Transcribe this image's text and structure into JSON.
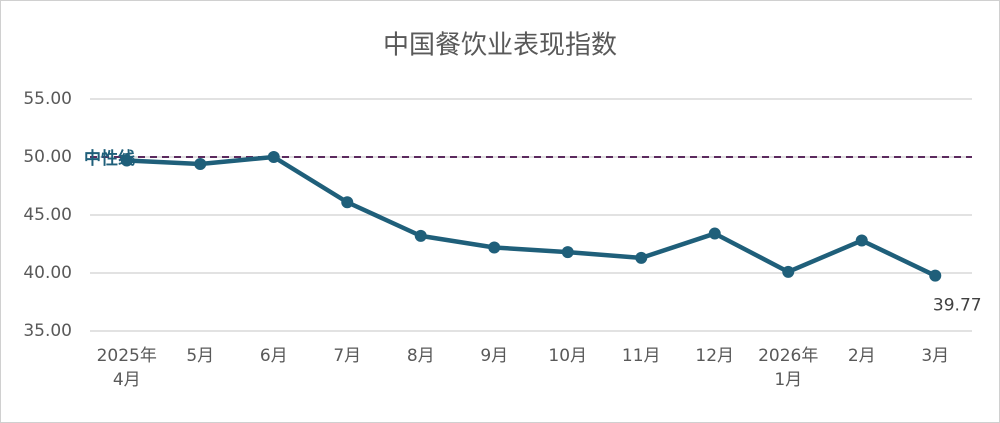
{
  "chart_data": {
    "type": "line",
    "title": "中国餐饮业表现指数",
    "categories": [
      "2025年\n4月",
      "5月",
      "6月",
      "7月",
      "8月",
      "9月",
      "10月",
      "11月",
      "12月",
      "2026年\n1月",
      "2月",
      "3月"
    ],
    "series": [
      {
        "name": "中国餐饮业表现指数",
        "color": "#1f5f7a",
        "values": [
          49.7,
          49.4,
          50.0,
          46.1,
          43.2,
          42.2,
          41.8,
          41.3,
          43.4,
          40.1,
          42.8,
          39.77
        ],
        "value_labels": [
          null,
          null,
          null,
          null,
          null,
          null,
          null,
          null,
          null,
          null,
          null,
          "39.77"
        ]
      }
    ],
    "ylim": [
      35,
      55
    ],
    "yticks": [
      {
        "value": 35,
        "label": "35.00"
      },
      {
        "value": 40,
        "label": "40.00"
      },
      {
        "value": 45,
        "label": "45.00"
      },
      {
        "value": 50,
        "label": "50.00"
      },
      {
        "value": 55,
        "label": "55.00"
      }
    ],
    "grid": true,
    "reference_line": {
      "value": 50,
      "label": "中性线",
      "color": "#5b2a5e"
    }
  }
}
